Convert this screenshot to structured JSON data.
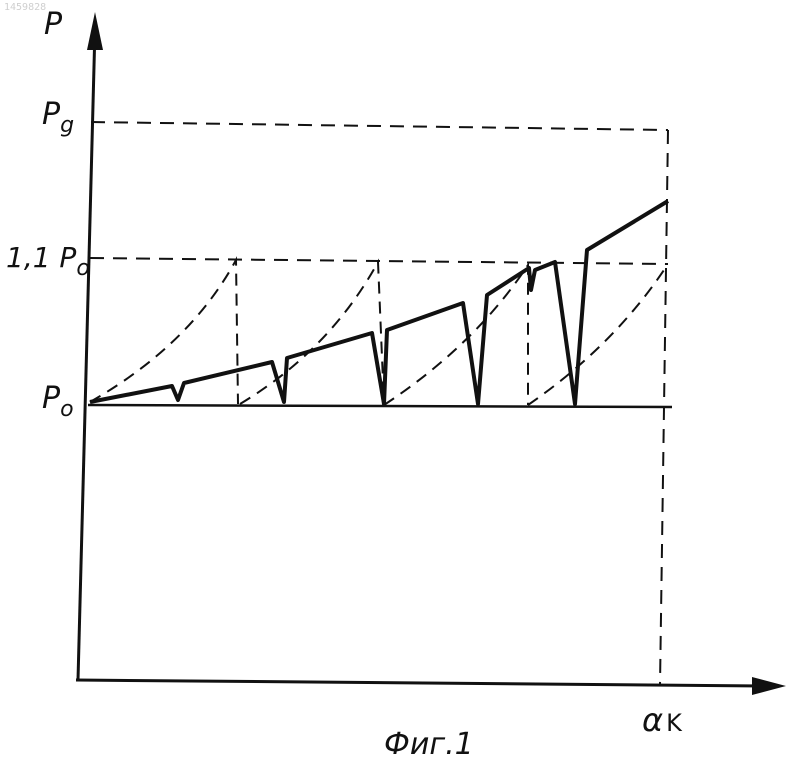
{
  "document_number": "1459828",
  "axes": {
    "y_label": "P",
    "x_label": {
      "main": "α",
      "sub": "K"
    }
  },
  "levels": [
    {
      "id": "p0",
      "prefix": "P",
      "sub": "o"
    },
    {
      "id": "p11",
      "prefix": "1,1 P",
      "sub": "o"
    },
    {
      "id": "pg",
      "prefix": "P",
      "sub": "g"
    }
  ],
  "caption": "Фиг.1",
  "colors": {
    "ink": "#111111",
    "paper": "#ffffff"
  }
}
